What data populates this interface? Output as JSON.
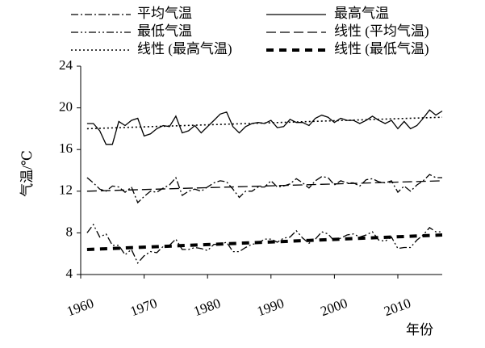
{
  "chart_data": {
    "type": "line",
    "xlabel": "年份",
    "ylabel": "气温/℃",
    "x": [
      1961,
      1962,
      1963,
      1964,
      1965,
      1966,
      1967,
      1968,
      1969,
      1970,
      1971,
      1972,
      1973,
      1974,
      1975,
      1976,
      1977,
      1978,
      1979,
      1980,
      1981,
      1982,
      1983,
      1984,
      1985,
      1986,
      1987,
      1988,
      1989,
      1990,
      1991,
      1992,
      1993,
      1994,
      1995,
      1996,
      1997,
      1998,
      1999,
      2000,
      2001,
      2002,
      2003,
      2004,
      2005,
      2006,
      2007,
      2008,
      2009,
      2010,
      2011,
      2012,
      2013,
      2014,
      2015,
      2016,
      2017
    ],
    "xlim": [
      1960,
      2017
    ],
    "xticks": [
      1960,
      1970,
      1980,
      1990,
      2000,
      2010
    ],
    "ylim": [
      4,
      24
    ],
    "yticks": [
      4,
      8,
      12,
      16,
      20,
      24
    ],
    "series": [
      {
        "name": "平均气温",
        "color": "#000000",
        "dash": "dashdot",
        "width": 1.3,
        "values": [
          13.3,
          12.8,
          12.2,
          12.0,
          12.5,
          12.4,
          11.9,
          12.4,
          10.9,
          11.5,
          12.0,
          11.9,
          12.3,
          12.6,
          13.3,
          11.6,
          12.0,
          12.2,
          12.0,
          12.4,
          12.8,
          13.0,
          12.9,
          12.2,
          11.4,
          12.0,
          12.0,
          12.4,
          12.4,
          13.0,
          12.4,
          12.5,
          12.7,
          13.2,
          12.8,
          12.3,
          13.0,
          13.4,
          13.3,
          12.6,
          13.0,
          12.8,
          12.8,
          12.5,
          13.1,
          13.2,
          12.9,
          12.8,
          13.0,
          11.9,
          12.5,
          12.0,
          12.6,
          13.0,
          13.6,
          13.3,
          13.3
        ]
      },
      {
        "name": "最高气温",
        "color": "#000000",
        "dash": "solid",
        "width": 1.3,
        "values": [
          18.5,
          18.5,
          17.8,
          16.5,
          16.5,
          18.7,
          18.3,
          18.8,
          19.0,
          17.3,
          17.5,
          18.0,
          18.3,
          18.2,
          19.2,
          17.6,
          17.8,
          18.3,
          17.6,
          18.2,
          18.8,
          19.4,
          19.6,
          18.2,
          17.6,
          18.2,
          18.5,
          18.6,
          18.5,
          18.8,
          18.1,
          18.2,
          18.9,
          18.6,
          18.6,
          18.3,
          19.0,
          19.3,
          19.1,
          18.6,
          19.0,
          18.8,
          18.8,
          18.5,
          18.8,
          19.2,
          18.8,
          18.5,
          18.8,
          18.0,
          18.7,
          18.0,
          18.3,
          19.0,
          19.8,
          19.3,
          19.7
        ]
      },
      {
        "name": "最低气温",
        "color": "#000000",
        "dash": "dashdotdot",
        "width": 1.3,
        "values": [
          8.0,
          8.8,
          7.6,
          7.9,
          6.8,
          6.8,
          5.9,
          6.4,
          5.1,
          5.8,
          6.2,
          6.1,
          6.7,
          6.8,
          7.4,
          6.4,
          6.4,
          6.6,
          6.5,
          6.3,
          6.9,
          6.9,
          7.1,
          6.2,
          6.2,
          6.6,
          6.9,
          7.0,
          7.4,
          7.4,
          7.1,
          7.5,
          7.6,
          8.2,
          7.5,
          7.0,
          7.4,
          8.1,
          7.9,
          7.2,
          7.5,
          7.8,
          7.9,
          7.6,
          7.8,
          8.1,
          7.3,
          7.2,
          7.6,
          6.5,
          6.6,
          6.6,
          7.3,
          7.8,
          8.5,
          8.1,
          8.1
        ]
      },
      {
        "name": "线性 (平均气温)",
        "color": "#000000",
        "dash": "dashed",
        "width": 1.3,
        "x": [
          1961,
          2017
        ],
        "values": [
          12.0,
          13.0
        ]
      },
      {
        "name": "线性 (最高气温)",
        "color": "#000000",
        "dash": "dotted",
        "width": 1.6,
        "x": [
          1961,
          2017
        ],
        "values": [
          18.0,
          19.1
        ]
      },
      {
        "name": "线性 (最低气温)",
        "color": "#000000",
        "dash": "thickdash",
        "width": 4,
        "x": [
          1961,
          2017
        ],
        "values": [
          6.4,
          7.8
        ]
      }
    ]
  }
}
